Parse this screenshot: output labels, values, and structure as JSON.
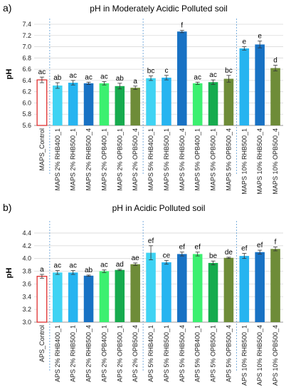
{
  "panels": [
    {
      "label": "a)"
    },
    {
      "label": "b)"
    }
  ],
  "colors": {
    "control_edge": "#e03030",
    "rhb_light": "#3fd3f3",
    "rhb_mid": "#27b4f0",
    "rhb_dark": "#1872c4",
    "opb_light": "#3cf070",
    "opb_mid": "#16ab4e",
    "opb_dark": "#6e8c38",
    "separator": "#5b9bd5",
    "grid": "#d9d9d9",
    "error": "#333333"
  },
  "chart_data": [
    {
      "type": "bar",
      "title": "pH in Moderately Acidic Polluted soil",
      "xlabel": "",
      "ylabel": "pH",
      "ylim": [
        5.6,
        7.4
      ],
      "yticks": [
        "5.6",
        "5.8",
        "6.0",
        "6.2",
        "6.4",
        "6.6",
        "6.8",
        "7.0",
        "7.2",
        "7.4"
      ],
      "grid": true,
      "categories": [
        "MAPS_Control",
        "MAPS 2% RHB400_1",
        "MAPS 2% RHB500_1",
        "MAPS 2% RHB500_4",
        "MAPS 2% OPB400_1",
        "MAPS 2% OPB500_1",
        "MAPS 2% OPB500_4",
        "MAPS 5% RHB400_1",
        "MAPS 5% RHB500_1",
        "MAPS 5% RHB500_4",
        "MAPS 5% OPB400_1",
        "MAPS 5% OPB500_1",
        "MAPS 5% OPB500_4",
        "MAPS 10% RHB500_1",
        "MAPS 10% RHB500_4",
        "MAPS 10% OPB500_4"
      ],
      "values": [
        6.41,
        6.31,
        6.36,
        6.35,
        6.35,
        6.3,
        6.27,
        6.44,
        6.45,
        7.27,
        6.35,
        6.37,
        6.43,
        6.97,
        7.04,
        6.62
      ],
      "errors": [
        0.05,
        0.05,
        0.04,
        0.02,
        0.03,
        0.05,
        0.03,
        0.04,
        0.04,
        0.02,
        0.02,
        0.04,
        0.06,
        0.03,
        0.06,
        0.05
      ],
      "letters": [
        "ac",
        "ab",
        "ac",
        "ac",
        "ac",
        "ab",
        "a",
        "bc",
        "c",
        "f",
        "ac",
        "ac",
        "bc",
        "e",
        "e",
        "d"
      ],
      "bar_colors": [
        "control",
        "rhb_light",
        "rhb_mid",
        "rhb_dark",
        "opb_light",
        "opb_mid",
        "opb_dark",
        "rhb_light",
        "rhb_mid",
        "rhb_dark",
        "opb_light",
        "opb_mid",
        "opb_dark",
        "rhb_mid",
        "rhb_dark",
        "opb_dark"
      ],
      "separators_after": [
        0,
        6,
        12
      ]
    },
    {
      "type": "bar",
      "title": "pH in Acidic Polluted soil",
      "xlabel": "",
      "ylabel": "pH",
      "ylim": [
        3.0,
        4.5
      ],
      "yticks": [
        "3.0",
        "3.2",
        "3.4",
        "3.6",
        "3.8",
        "4.0",
        "4.2",
        "4.4"
      ],
      "grid": true,
      "categories": [
        "APS_Control",
        "APS 2% RHB400_1",
        "APS 2% RHB500_1",
        "APS 2% RHB500_4",
        "APS 2% OPB400_1",
        "APS 2% OPB500_1",
        "APS 2% OPB500_4",
        "APS 5% RHB400_1",
        "APS 5% RHB500_1",
        "APS 5% RHB500_4",
        "APS 5% OPB400_1",
        "APS 5% OPB500_1",
        "APS 5% OPB500_4",
        "APS 10% RHB500_1",
        "APS 10% RHB500_4",
        "APS 10% OPB500_4"
      ],
      "values": [
        3.72,
        3.78,
        3.78,
        3.73,
        3.8,
        3.82,
        3.91,
        4.09,
        3.94,
        4.07,
        4.07,
        3.93,
        4.01,
        4.04,
        4.1,
        4.15
      ],
      "errors": [
        0.03,
        0.03,
        0.03,
        0.01,
        0.02,
        0.01,
        0.02,
        0.11,
        0.03,
        0.03,
        0.03,
        0.03,
        0.01,
        0.04,
        0.03,
        0.03
      ],
      "letters": [
        "a",
        "ac",
        "ac",
        "ab",
        "ac",
        "ad",
        "ae",
        "ef",
        "ce",
        "ef",
        "ef",
        "be",
        "de",
        "ef",
        "ef",
        "f"
      ],
      "bar_colors": [
        "control",
        "rhb_light",
        "rhb_mid",
        "rhb_dark",
        "opb_light",
        "opb_mid",
        "opb_dark",
        "rhb_light",
        "rhb_mid",
        "rhb_dark",
        "opb_light",
        "opb_mid",
        "opb_dark",
        "rhb_mid",
        "rhb_dark",
        "opb_dark"
      ],
      "separators_after": [
        0,
        6,
        12
      ]
    }
  ]
}
